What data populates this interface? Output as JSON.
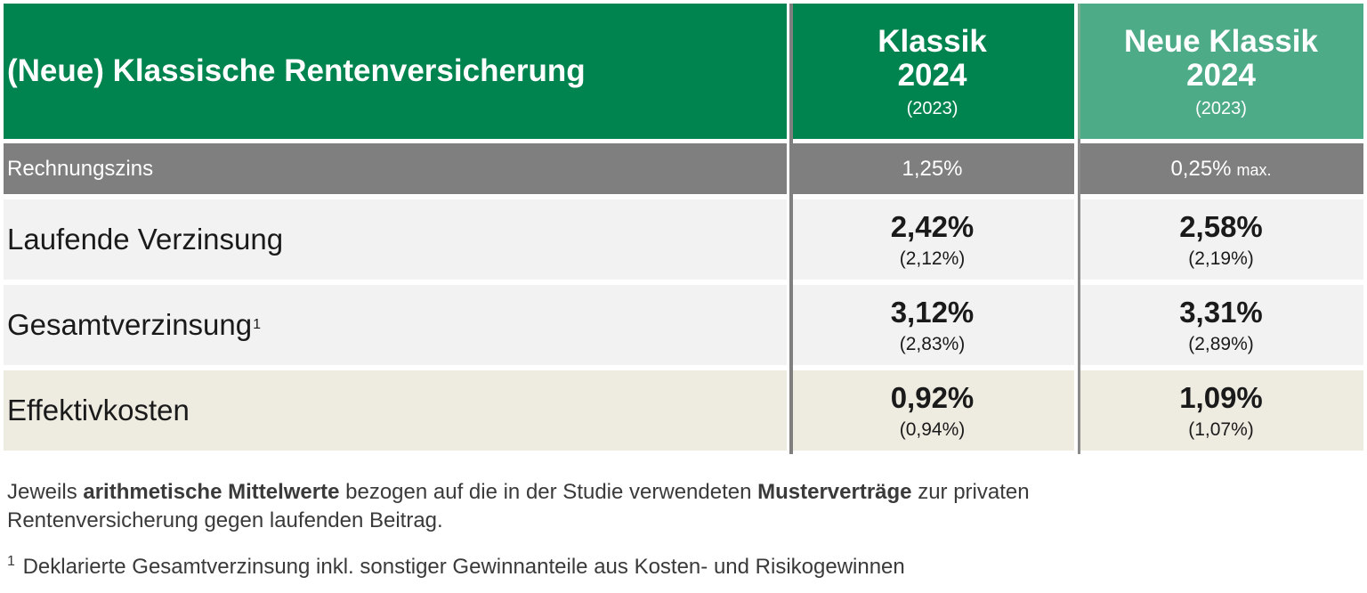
{
  "header": {
    "title": "(Neue) Klassische Rentenversicherung",
    "col1": {
      "line1": "Klassik",
      "line2": "2024",
      "prev": "(2023)"
    },
    "col2": {
      "line1": "Neue Klassik",
      "line2": "2024",
      "prev": "(2023)"
    }
  },
  "rechnungszins": {
    "label": "Rechnungszins",
    "col1": "1,25%",
    "col2": "0,25%",
    "col2_suffix": "max."
  },
  "rows": [
    {
      "label": "Laufende Verzinsung",
      "footnote": "",
      "col1": "2,42%",
      "col1_prev": "(2,12%)",
      "col2": "2,58%",
      "col2_prev": "(2,19%)"
    },
    {
      "label": "Gesamtverzinsung",
      "footnote": "1",
      "col1": "3,12%",
      "col1_prev": "(2,83%)",
      "col2": "3,31%",
      "col2_prev": "(2,89%)"
    },
    {
      "label": "Effektivkosten",
      "footnote": "",
      "col1": "0,92%",
      "col1_prev": "(0,94%)",
      "col2": "1,09%",
      "col2_prev": "(1,07%)"
    }
  ],
  "notes": {
    "line1_a": "Jeweils ",
    "line1_b": "arithmetische Mittelwerte",
    "line1_c": " bezogen auf die in der Studie verwendeten ",
    "line1_d": "Musterverträge",
    "line1_e": " zur privaten",
    "line2": "Rentenversicherung gegen laufenden Beitrag.",
    "footnote_num": "1",
    "footnote_text": " Deklarierte Gesamtverzinsung inkl. sonstiger Gewinnanteile aus Kosten- und Risikogewinnen"
  },
  "colors": {
    "header_green": "#00844f",
    "header_light_green": "#4dab88",
    "zins_gray": "#7f7f7f",
    "row_light": "#f2f2f2",
    "row_beige": "#eeebe1"
  }
}
